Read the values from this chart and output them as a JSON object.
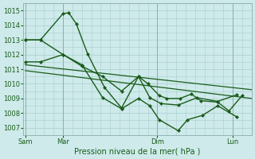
{
  "title": "Pression niveau de la mer( hPa )",
  "bg_color": "#ceeaea",
  "grid_color": "#aacece",
  "line_color": "#1a5c1a",
  "ylim": [
    1006.5,
    1015.5
  ],
  "yticks": [
    1007,
    1008,
    1009,
    1010,
    1011,
    1012,
    1013,
    1014,
    1015
  ],
  "xlim": [
    -0.05,
    6.0
  ],
  "x_vlines_pos": [
    0.0,
    1.0,
    3.5,
    5.5
  ],
  "xtick_positions": [
    0.0,
    1.0,
    3.5,
    5.5
  ],
  "xtick_labels": [
    "Sam",
    "Mar",
    "Dim",
    "Lun"
  ],
  "series": [
    {
      "x": [
        0.0,
        0.4,
        1.0,
        1.15,
        1.35,
        1.65,
        2.1,
        2.55,
        3.0,
        3.25,
        3.55,
        3.75,
        4.1,
        4.4,
        4.65,
        5.1,
        5.4,
        5.75
      ],
      "y": [
        1013.0,
        1013.0,
        1014.8,
        1014.85,
        1014.1,
        1012.05,
        1009.75,
        1008.35,
        1010.5,
        1010.0,
        1009.2,
        1009.0,
        1009.0,
        1009.3,
        1008.85,
        1008.75,
        1008.15,
        1009.2
      ],
      "marker": "D",
      "markersize": 2.0,
      "linewidth": 1.0
    },
    {
      "x": [
        0.0,
        0.4,
        1.0,
        1.5,
        2.05,
        2.55,
        3.0,
        3.3,
        3.6,
        4.05,
        4.55,
        5.1,
        5.6
      ],
      "y": [
        1011.5,
        1011.5,
        1012.0,
        1011.2,
        1010.5,
        1009.5,
        1010.5,
        1009.05,
        1008.65,
        1008.55,
        1009.05,
        1008.8,
        1009.25
      ],
      "marker": "D",
      "markersize": 2.0,
      "linewidth": 1.0
    },
    {
      "x": [
        0.0,
        6.0
      ],
      "y": [
        1011.3,
        1009.6
      ],
      "marker": null,
      "markersize": 0,
      "linewidth": 0.9
    },
    {
      "x": [
        0.0,
        6.0
      ],
      "y": [
        1010.9,
        1009.0
      ],
      "marker": null,
      "markersize": 0,
      "linewidth": 0.9
    },
    {
      "x": [
        0.0,
        0.4,
        1.0,
        1.5,
        2.05,
        2.55,
        3.0,
        3.3,
        3.55,
        4.05,
        4.3,
        4.7,
        5.1,
        5.6
      ],
      "y": [
        1013.0,
        1013.0,
        1012.0,
        1011.3,
        1009.05,
        1008.3,
        1009.0,
        1008.5,
        1007.55,
        1006.8,
        1007.55,
        1007.85,
        1008.5,
        1007.75
      ],
      "marker": "D",
      "markersize": 2.0,
      "linewidth": 1.0
    }
  ]
}
